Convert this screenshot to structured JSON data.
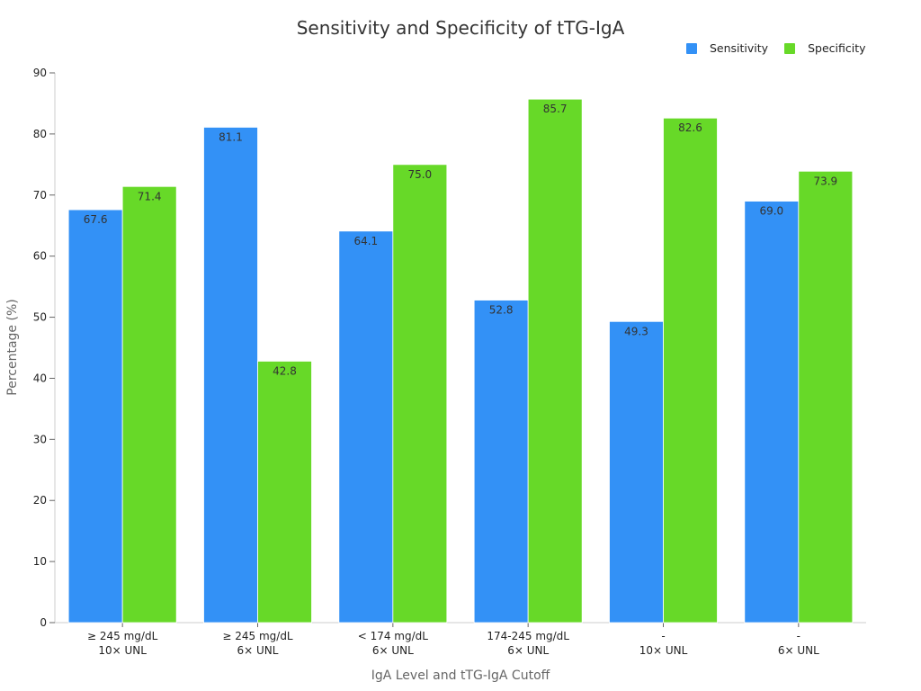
{
  "chart_data": {
    "type": "bar",
    "title": "Sensitivity and Specificity of tTG-IgA",
    "xlabel": "IgA Level and tTG-IgA Cutoff",
    "ylabel": "Percentage (%)",
    "ylim": [
      0,
      90
    ],
    "yticks": [
      0,
      10,
      20,
      30,
      40,
      50,
      60,
      70,
      80,
      90
    ],
    "legend_position": "top-right",
    "grid": false,
    "categories": [
      [
        "≥ 245 mg/dL",
        "10× UNL"
      ],
      [
        "≥ 245 mg/dL",
        "6× UNL"
      ],
      [
        "< 174 mg/dL",
        "6× UNL"
      ],
      [
        "174-245 mg/dL",
        "6× UNL"
      ],
      [
        "-",
        "10× UNL"
      ],
      [
        "-",
        "6× UNL"
      ]
    ],
    "series": [
      {
        "name": "Sensitivity",
        "color": "#3391f6",
        "values": [
          67.6,
          81.1,
          64.1,
          52.8,
          49.3,
          69.0
        ],
        "labels": [
          "67.6",
          "81.1",
          "64.1",
          "52.8",
          "49.3",
          "69.0"
        ]
      },
      {
        "name": "Specificity",
        "color": "#67d928",
        "values": [
          71.4,
          42.8,
          75.0,
          85.7,
          82.6,
          73.9
        ],
        "labels": [
          "71.4",
          "42.8",
          "75.0",
          "85.7",
          "82.6",
          "73.9"
        ]
      }
    ]
  }
}
